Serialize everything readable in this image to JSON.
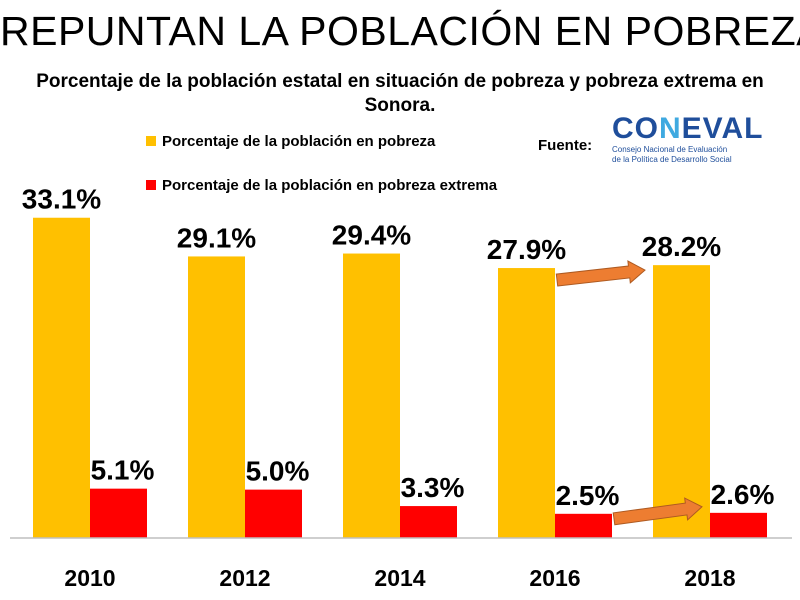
{
  "header": {
    "title": "REPUNTAN LA POBLACIÓN EN POBREZA"
  },
  "chart_data": {
    "type": "bar",
    "title": "Porcentaje de la población estatal en situación de pobreza y pobreza extrema en Sonora.",
    "categories": [
      "2010",
      "2012",
      "2014",
      "2016",
      "2018"
    ],
    "series": [
      {
        "name": "Porcentaje de la población en pobreza",
        "color": "#FFC000",
        "values": [
          33.1,
          29.1,
          29.4,
          27.9,
          28.2
        ],
        "labels": [
          "33.1%",
          "29.1%",
          "29.4%",
          "27.9%",
          "28.2%"
        ]
      },
      {
        "name": "Porcentaje de la población en pobreza extrema",
        "color": "#FF0000",
        "values": [
          5.1,
          5.0,
          3.3,
          2.5,
          2.6
        ],
        "labels": [
          "5.1%",
          "5.0%",
          "3.3%",
          "2.5%",
          "2.6%"
        ]
      }
    ],
    "ylim": [
      0,
      37
    ],
    "grid": false,
    "legend_position": "top-left",
    "annotations": [
      {
        "type": "arrow",
        "from": "2016",
        "to": "2018",
        "series": 0,
        "color": "#ED7D31"
      },
      {
        "type": "arrow",
        "from": "2016",
        "to": "2018",
        "series": 1,
        "color": "#ED7D31"
      }
    ]
  },
  "source": {
    "label": "Fuente:",
    "logo_prefix": "CO",
    "logo_accent": "N",
    "logo_suffix": "EVAL",
    "logo_line1": "Consejo Nacional de Evaluación",
    "logo_line2": "de la Política de Desarrollo Social"
  }
}
